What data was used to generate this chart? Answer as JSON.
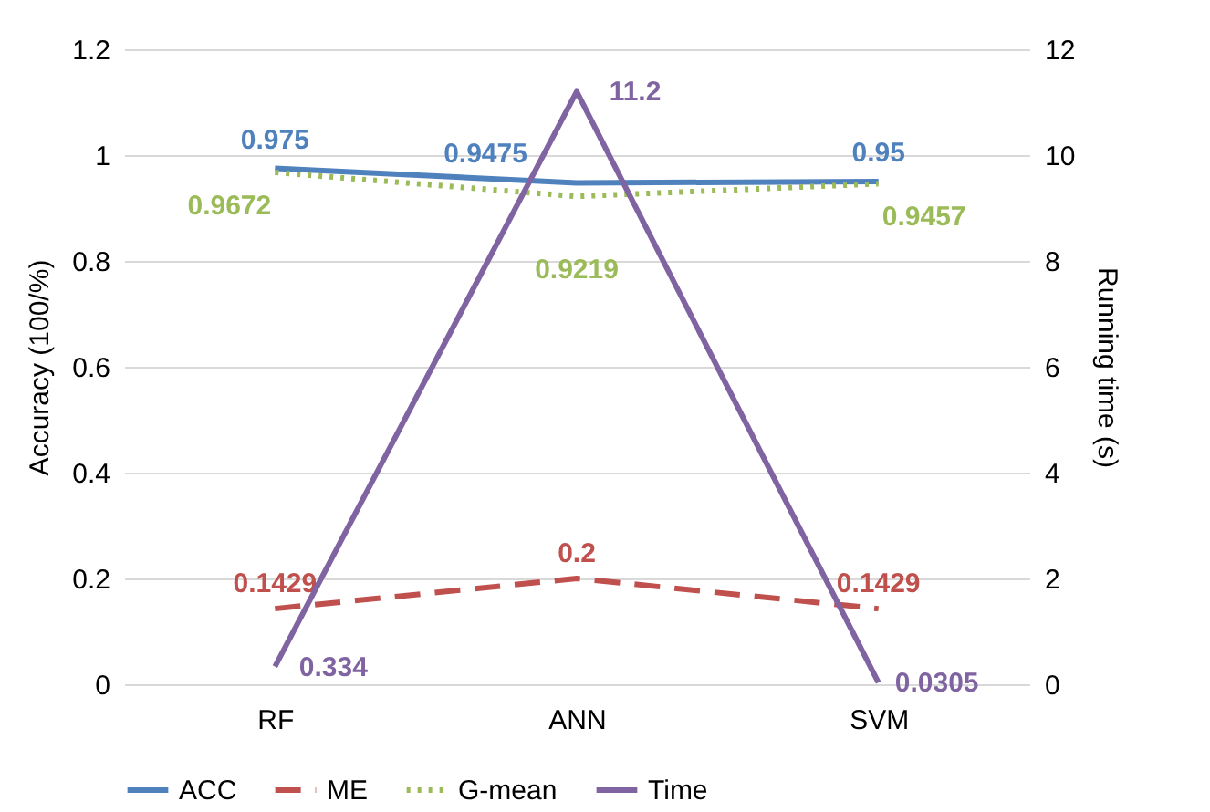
{
  "chart_data": {
    "type": "line",
    "ylabel": "Accuracy (100/%)",
    "y2label": "Running time (s)",
    "categories": [
      "RF",
      "ANN",
      "SVM"
    ],
    "series": [
      {
        "name": "ACC",
        "color": "#4f81bd",
        "values": [
          0.975,
          0.9475,
          0.95
        ]
      },
      {
        "name": "ME",
        "color": "#c0504d",
        "values": [
          0.1429,
          0.2,
          0.1429
        ],
        "line_style": "dashed"
      },
      {
        "name": "G-mean",
        "color": "#9bbb59",
        "values": [
          0.9672,
          0.9219,
          0.9457
        ],
        "line_style": "dotted"
      },
      {
        "name": "Time",
        "color": "#8064a2",
        "values": [
          0.334,
          11.2,
          0.0305
        ],
        "axis": "y2"
      }
    ],
    "ylim": [
      0,
      1.2
    ],
    "yticks": [
      {
        "value": 0,
        "label": "0"
      },
      0.2,
      0.4,
      0.6,
      0.8,
      {
        "value": 1,
        "label": "1"
      },
      1.2
    ],
    "y2lim": [
      0,
      12
    ],
    "y2ticks": [
      0,
      2,
      4,
      6,
      8,
      10,
      12
    ],
    "grid": "y",
    "legend": "bottom",
    "data_labels": true,
    "marker": "none"
  }
}
